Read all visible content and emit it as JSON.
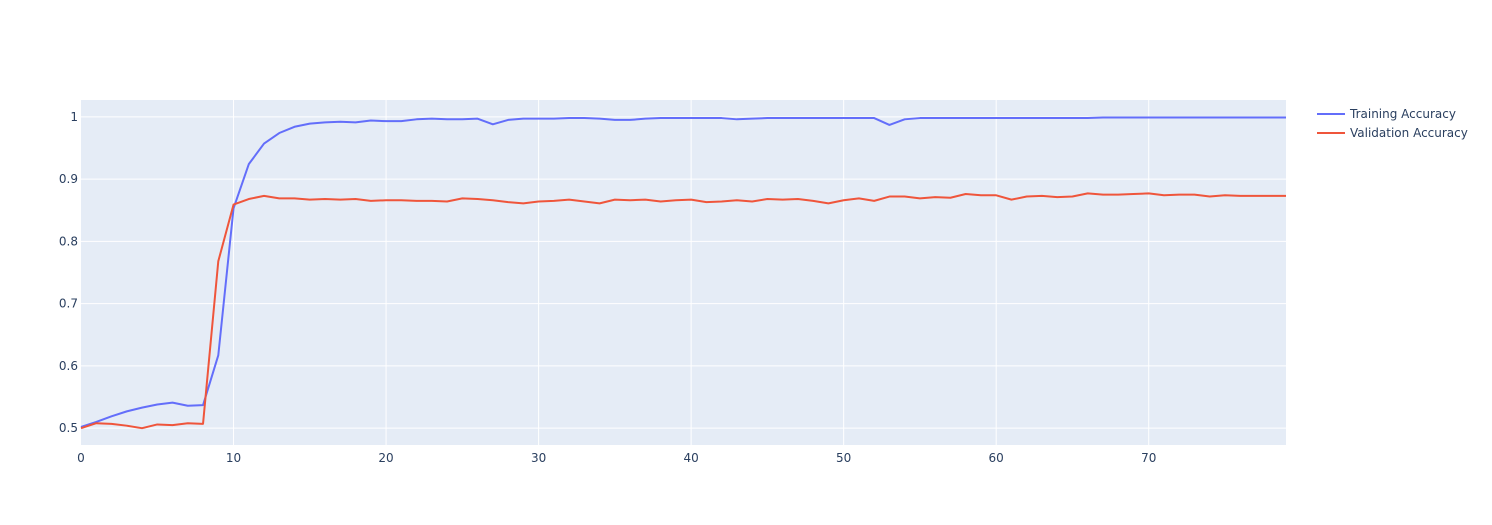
{
  "chart_data": {
    "type": "line",
    "title": "",
    "xlabel": "",
    "ylabel": "",
    "xlim": [
      0,
      79
    ],
    "ylim": [
      0.473,
      1.027
    ],
    "x_ticks": [
      0,
      10,
      20,
      30,
      40,
      50,
      60,
      70
    ],
    "y_ticks": [
      0.5,
      0.6,
      0.7,
      0.8,
      0.9,
      1
    ],
    "y_tick_labels": [
      "0.5",
      "0.6",
      "0.7",
      "0.8",
      "0.9",
      "1"
    ],
    "grid": true,
    "legend_position": "top-right, outside plot",
    "background_color": "#e5ecf6",
    "series": [
      {
        "name": "Training Accuracy",
        "color": "#636efa",
        "values": [
          0.502,
          0.51,
          0.519,
          0.527,
          0.533,
          0.538,
          0.541,
          0.536,
          0.537,
          0.617,
          0.853,
          0.924,
          0.957,
          0.974,
          0.984,
          0.989,
          0.991,
          0.992,
          0.991,
          0.994,
          0.993,
          0.993,
          0.996,
          0.997,
          0.996,
          0.996,
          0.997,
          0.988,
          0.995,
          0.997,
          0.997,
          0.997,
          0.998,
          0.998,
          0.997,
          0.995,
          0.995,
          0.997,
          0.998,
          0.998,
          0.998,
          0.998,
          0.998,
          0.996,
          0.997,
          0.998,
          0.998,
          0.998,
          0.998,
          0.998,
          0.998,
          0.998,
          0.998,
          0.987,
          0.996,
          0.998,
          0.998,
          0.998,
          0.998,
          0.998,
          0.998,
          0.998,
          0.998,
          0.998,
          0.998,
          0.998,
          0.998,
          0.999,
          0.999,
          0.999,
          0.999,
          0.999,
          0.999,
          0.999,
          0.999,
          0.999,
          0.999,
          0.999,
          0.999,
          0.999
        ]
      },
      {
        "name": "Validation Accuracy",
        "color": "#ef553b",
        "values": [
          0.5,
          0.508,
          0.507,
          0.504,
          0.5,
          0.506,
          0.505,
          0.508,
          0.507,
          0.768,
          0.859,
          0.868,
          0.873,
          0.869,
          0.869,
          0.867,
          0.868,
          0.867,
          0.868,
          0.865,
          0.866,
          0.866,
          0.865,
          0.865,
          0.864,
          0.869,
          0.868,
          0.866,
          0.863,
          0.861,
          0.864,
          0.865,
          0.867,
          0.864,
          0.861,
          0.867,
          0.866,
          0.867,
          0.864,
          0.866,
          0.867,
          0.863,
          0.864,
          0.866,
          0.864,
          0.868,
          0.867,
          0.868,
          0.865,
          0.861,
          0.866,
          0.869,
          0.865,
          0.872,
          0.872,
          0.869,
          0.871,
          0.87,
          0.876,
          0.874,
          0.874,
          0.867,
          0.872,
          0.873,
          0.871,
          0.872,
          0.877,
          0.875,
          0.875,
          0.876,
          0.877,
          0.874,
          0.875,
          0.875,
          0.872,
          0.874,
          0.873,
          0.873,
          0.873,
          0.873
        ]
      }
    ]
  }
}
